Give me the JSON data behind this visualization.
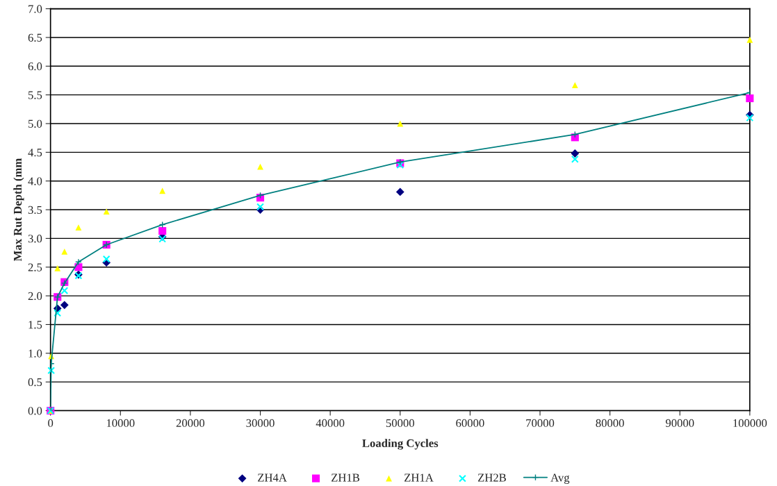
{
  "chart_data": {
    "type": "scatter",
    "xlabel": "Loading Cycles",
    "ylabel": "Max Rut Depth (mm",
    "x": [
      0,
      100,
      1000,
      2000,
      4000,
      8000,
      16000,
      30000,
      50000,
      75000,
      100000
    ],
    "series": [
      {
        "name": "ZH4A",
        "color": "#000080",
        "marker": "diamond",
        "values": [
          0,
          null,
          1.78,
          1.84,
          2.37,
          2.58,
          3.03,
          3.5,
          3.81,
          4.48,
          5.15
        ]
      },
      {
        "name": "ZH1B",
        "color": "#ff00ff",
        "marker": "square",
        "values": [
          0,
          null,
          1.98,
          2.24,
          2.5,
          2.89,
          3.13,
          3.71,
          4.31,
          4.76,
          5.44
        ]
      },
      {
        "name": "ZH1A",
        "color": "#ffff00",
        "marker": "triangle",
        "values": [
          0,
          0.95,
          2.48,
          2.77,
          3.19,
          3.47,
          3.83,
          4.25,
          5.0,
          5.67,
          6.46
        ]
      },
      {
        "name": "ZH2B",
        "color": "#00ffff",
        "marker": "cross",
        "values": [
          0,
          0.7,
          1.7,
          2.09,
          2.35,
          2.64,
          2.99,
          3.55,
          4.28,
          4.38,
          5.1
        ]
      },
      {
        "name": "Avg",
        "color": "#008080",
        "type": "line",
        "marker": "cross",
        "values": [
          0,
          0.82,
          1.98,
          2.22,
          2.59,
          2.89,
          3.24,
          3.75,
          4.33,
          4.81,
          5.54
        ]
      }
    ],
    "xlim": [
      0,
      100000
    ],
    "xticks": [
      0,
      10000,
      20000,
      30000,
      40000,
      50000,
      60000,
      70000,
      80000,
      90000,
      100000
    ],
    "ylim": [
      0,
      7
    ],
    "yticks": [
      {
        "value": 0,
        "label": "0.0"
      },
      {
        "value": 0.5,
        "label": "0.5"
      },
      {
        "value": 1,
        "label": "1.0"
      },
      {
        "value": 1.5,
        "label": "1.5"
      },
      {
        "value": 2,
        "label": "2.0"
      },
      {
        "value": 2.5,
        "label": "2.5"
      },
      {
        "value": 3,
        "label": "3.0"
      },
      {
        "value": 3.5,
        "label": "3.5"
      },
      {
        "value": 4,
        "label": "4.0"
      },
      {
        "value": 4.5,
        "label": "4.5"
      },
      {
        "value": 5,
        "label": "5.0"
      },
      {
        "value": 5.5,
        "label": "5.5"
      },
      {
        "value": 6,
        "label": "6.0"
      },
      {
        "value": 6.5,
        "label": "6.5"
      },
      {
        "value": 7,
        "label": "7.0"
      }
    ],
    "grid": "y",
    "legend": "bottom"
  }
}
